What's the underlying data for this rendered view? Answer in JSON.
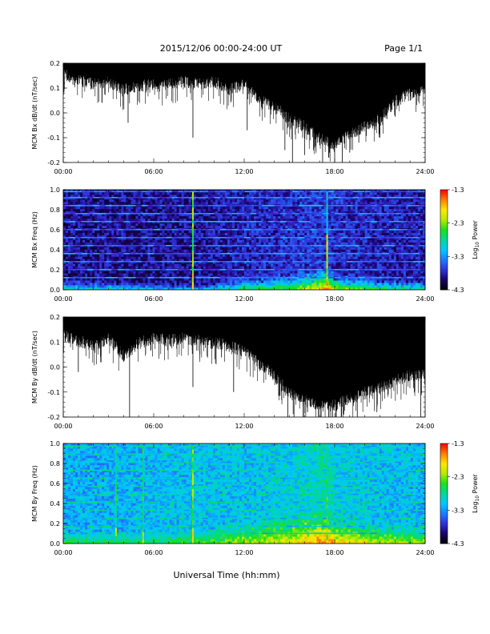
{
  "header": {
    "title": "2015/12/06  00:00-24:00 UT",
    "page": "Page 1/1"
  },
  "footer": {
    "xlabel": "Universal Time (hh:mm)"
  },
  "colorbar": {
    "label": "Log10 Power",
    "label_main": "Log",
    "label_sub": "10",
    "label_tail": " Power",
    "ticks": [
      "-1.3",
      "-2.3",
      "-3.3",
      "-4.3"
    ],
    "tick_values": [
      -1.3,
      -2.3,
      -3.3,
      -4.3
    ],
    "range": [
      -4.3,
      -1.3
    ],
    "colormap": [
      "#000000",
      "#1a0066",
      "#3030d8",
      "#1f78ff",
      "#00c8ff",
      "#00d89a",
      "#19e01e",
      "#b5ea00",
      "#ffe800",
      "#ff8000",
      "#ff0000"
    ]
  },
  "time_ticks": [
    "00:00",
    "06:00",
    "12:00",
    "18:00",
    "24:00"
  ],
  "chart_data": [
    {
      "type": "line",
      "id": "bx-dbdt",
      "ylabel": "MCM Bx dB/dt (nT/sec)",
      "x_unit": "hours UT",
      "xlim": [
        0,
        24
      ],
      "ylim": [
        -0.2,
        0.2
      ],
      "y_ticks": [
        "0.2",
        "0.1",
        "0.0",
        "-0.1",
        "-0.2"
      ],
      "y_tick_values": [
        0.2,
        0.1,
        0.0,
        -0.1,
        -0.2
      ],
      "color": "#000000",
      "upper_envelope": 0.2,
      "lower_envelope": {
        "x": [
          0,
          1,
          2,
          3,
          4,
          5,
          6,
          7,
          8,
          9,
          10,
          11,
          12,
          13,
          14,
          15,
          16,
          17,
          18,
          19,
          20,
          21,
          22,
          23,
          24
        ],
        "y": [
          0.16,
          0.14,
          0.12,
          0.13,
          0.1,
          0.11,
          0.12,
          0.12,
          0.13,
          0.12,
          0.13,
          0.1,
          0.12,
          0.06,
          0.03,
          -0.02,
          -0.05,
          -0.1,
          -0.12,
          -0.08,
          -0.05,
          -0.02,
          0.05,
          0.08,
          0.1
        ]
      },
      "spikes": {
        "x": [
          4.3,
          8.6,
          12.2,
          14.7,
          15.2,
          16.0,
          16.6,
          17.2,
          17.6,
          18.0,
          18.5,
          19.0,
          19.6,
          21.0
        ],
        "y": [
          -0.04,
          -0.1,
          -0.07,
          -0.15,
          -0.2,
          -0.17,
          -0.15,
          -0.2,
          -0.18,
          -0.2,
          -0.2,
          -0.16,
          -0.12,
          -0.1
        ]
      }
    },
    {
      "type": "heatmap",
      "id": "bx-spectrogram",
      "ylabel": "MCM Bx Freq (Hz)",
      "x_unit": "hours UT",
      "xlim": [
        0,
        24
      ],
      "ylim": [
        0,
        1.0
      ],
      "y_ticks": [
        "1.0",
        "0.8",
        "0.6",
        "0.4",
        "0.2",
        "0.0"
      ],
      "y_tick_values": [
        1.0,
        0.8,
        0.6,
        0.4,
        0.2,
        0.0
      ],
      "value_range": [
        -4.3,
        -1.3
      ],
      "harmonic_lines": {
        "freq": [
          0.12,
          0.2,
          0.28,
          0.36,
          0.44,
          0.52,
          0.6,
          0.68,
          0.76,
          0.84,
          0.92,
          0.98
        ],
        "level": -3.4
      },
      "background": {
        "x": [
          0,
          3,
          6,
          8.6,
          9,
          12,
          15,
          16.5,
          17.5,
          18,
          21,
          24
        ],
        "level": [
          -3.9,
          -3.9,
          -3.9,
          -3.9,
          -3.9,
          -3.8,
          -3.75,
          -3.7,
          -3.7,
          -3.75,
          -3.8,
          -3.85
        ]
      },
      "low_freq_band": {
        "x": [
          0,
          3,
          6,
          9,
          12,
          15,
          17.5,
          18,
          21,
          24
        ],
        "top_freq": [
          0.1,
          0.08,
          0.06,
          0.05,
          0.12,
          0.15,
          0.2,
          0.14,
          0.1,
          0.08
        ],
        "level_at_zero": [
          -2.8,
          -2.9,
          -3.0,
          -3.0,
          -2.6,
          -2.4,
          -1.6,
          -2.0,
          -2.5,
          -2.7
        ]
      },
      "vertical_features": [
        {
          "x": 8.6,
          "freq_max": 0.98,
          "level": -2.4
        },
        {
          "x": 17.5,
          "freq_max": 0.98,
          "level": -3.0
        },
        {
          "x": 17.5,
          "freq_max": 0.55,
          "level": -2.2
        }
      ]
    },
    {
      "type": "line",
      "id": "by-dbdt",
      "ylabel": "MCM By dB/dt (nT/sec)",
      "x_unit": "hours UT",
      "xlim": [
        0,
        24
      ],
      "ylim": [
        -0.2,
        0.2
      ],
      "y_ticks": [
        "0.2",
        "0.1",
        "0.0",
        "-0.1",
        "-0.2"
      ],
      "y_tick_values": [
        0.2,
        0.1,
        0.0,
        -0.1,
        -0.2
      ],
      "color": "#000000",
      "upper_envelope": 0.2,
      "lower_envelope": {
        "x": [
          0,
          1,
          2,
          3,
          4,
          5,
          6,
          7,
          8,
          9,
          10,
          11,
          12,
          13,
          14,
          15,
          16,
          17,
          18,
          19,
          20,
          21,
          22,
          23,
          24
        ],
        "y": [
          0.13,
          0.11,
          0.09,
          0.12,
          0.05,
          0.1,
          0.12,
          0.11,
          0.12,
          0.11,
          0.1,
          0.09,
          0.07,
          0.02,
          -0.03,
          -0.1,
          -0.13,
          -0.15,
          -0.15,
          -0.12,
          -0.1,
          -0.08,
          -0.05,
          -0.03,
          -0.02
        ]
      },
      "spikes": {
        "x": [
          1.0,
          4.4,
          8.6,
          11.3,
          14.9,
          15.3,
          16.2,
          17.1,
          17.6,
          18.1,
          18.6,
          19.5,
          20.8,
          23.7
        ],
        "y": [
          -0.02,
          -0.2,
          -0.08,
          -0.1,
          -0.2,
          -0.2,
          -0.18,
          -0.2,
          -0.2,
          -0.2,
          -0.19,
          -0.2,
          -0.18,
          -0.2
        ]
      }
    },
    {
      "type": "heatmap",
      "id": "by-spectrogram",
      "ylabel": "MCM By Freq (Hz)",
      "x_unit": "hours UT",
      "xlim": [
        0,
        24
      ],
      "ylim": [
        0,
        1.0
      ],
      "y_ticks": [
        "1.0",
        "0.8",
        "0.6",
        "0.4",
        "0.2",
        "0.0"
      ],
      "y_tick_values": [
        1.0,
        0.8,
        0.6,
        0.4,
        0.2,
        0.0
      ],
      "value_range": [
        -4.3,
        -1.3
      ],
      "harmonic_lines": {
        "freq": [
          0.1,
          0.17,
          0.25,
          0.33,
          0.41,
          0.49,
          0.57,
          0.65,
          0.73,
          0.81,
          0.89,
          0.97
        ],
        "level": -3.0
      },
      "background": {
        "x": [
          0,
          3,
          6,
          9,
          12,
          15,
          17.5,
          18,
          21,
          24
        ],
        "level": [
          -3.2,
          -3.2,
          -3.15,
          -3.1,
          -3.1,
          -3.0,
          -2.9,
          -3.0,
          -3.1,
          -3.15
        ]
      },
      "low_freq_band": {
        "x": [
          0,
          3,
          6,
          9,
          12,
          15,
          17.5,
          18,
          21,
          24
        ],
        "top_freq": [
          0.15,
          0.12,
          0.12,
          0.14,
          0.22,
          0.28,
          0.3,
          0.25,
          0.2,
          0.18
        ],
        "level_at_zero": [
          -2.5,
          -2.6,
          -2.6,
          -2.5,
          -2.2,
          -2.0,
          -1.5,
          -1.8,
          -2.1,
          -2.3
        ]
      },
      "vertical_features": [
        {
          "x": 8.6,
          "freq_max": 0.98,
          "level": -2.4
        },
        {
          "x": 17.5,
          "freq_max": 0.98,
          "level": -2.6
        },
        {
          "x": 3.5,
          "freq_max": 0.98,
          "level": -2.7
        },
        {
          "x": 5.3,
          "freq_max": 0.98,
          "level": -2.7
        }
      ]
    }
  ]
}
